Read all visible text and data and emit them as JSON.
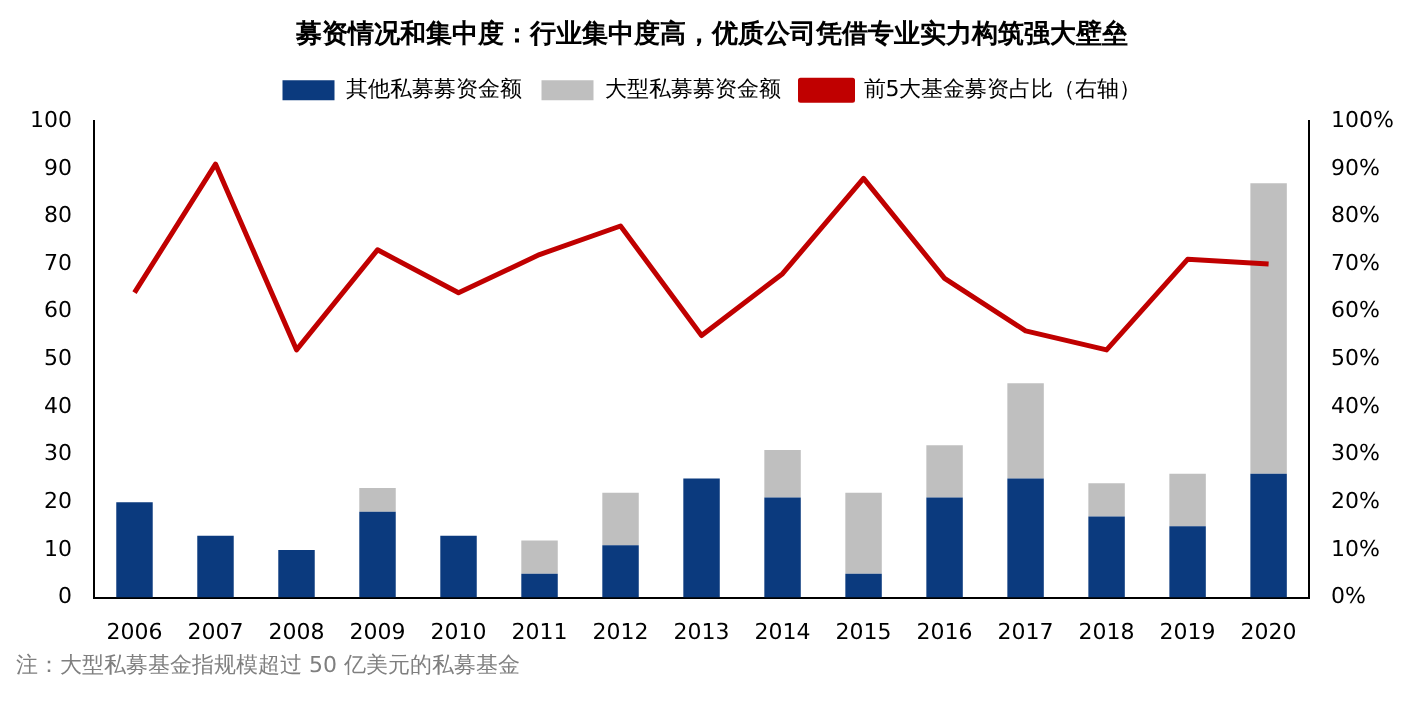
{
  "chart_data": {
    "type": "bar",
    "title": "募资情况和集中度：行业集中度高，优质公司凭借专业实力构筑强大壁垒",
    "categories": [
      "2006",
      "2007",
      "2008",
      "2009",
      "2010",
      "2011",
      "2012",
      "2013",
      "2014",
      "2015",
      "2016",
      "2017",
      "2018",
      "2019",
      "2020"
    ],
    "series": [
      {
        "name": "其他私募募资金额",
        "color": "#0b3a7e",
        "values": [
          20,
          13,
          10,
          18,
          13,
          5,
          11,
          25,
          21,
          5,
          21,
          25,
          17,
          15,
          26
        ]
      },
      {
        "name": "大型私募募资金额",
        "color": "#bfbfbf",
        "values": [
          0,
          0,
          0,
          5,
          0,
          7,
          11,
          0,
          10,
          17,
          11,
          20,
          7,
          11,
          61
        ]
      },
      {
        "name": "前5大基金募资占比（右轴）",
        "type": "line",
        "axis": "y2",
        "color": "#c00000",
        "marker": "none",
        "values": [
          64,
          91,
          52,
          73,
          64,
          72,
          78,
          55,
          68,
          88,
          67,
          56,
          52,
          71,
          70
        ]
      }
    ],
    "stacked": true,
    "ylim": [
      0,
      100
    ],
    "yticks": [
      0,
      10,
      20,
      30,
      40,
      50,
      60,
      70,
      80,
      90,
      100
    ],
    "y2lim": [
      0,
      100
    ],
    "y2ticks": [
      {
        "value": 0,
        "label": "0%"
      },
      {
        "value": 10,
        "label": "10%"
      },
      {
        "value": 20,
        "label": "20%"
      },
      {
        "value": 30,
        "label": "30%"
      },
      {
        "value": 40,
        "label": "40%"
      },
      {
        "value": 50,
        "label": "50%"
      },
      {
        "value": 60,
        "label": "60%"
      },
      {
        "value": 70,
        "label": "70%"
      },
      {
        "value": 80,
        "label": "80%"
      },
      {
        "value": 90,
        "label": "90%"
      },
      {
        "value": 100,
        "label": "100%"
      }
    ],
    "grid": false,
    "legend": "top",
    "annotations": [
      "注：大型私募基金指规模超过 50 亿美元的私募基金"
    ]
  }
}
